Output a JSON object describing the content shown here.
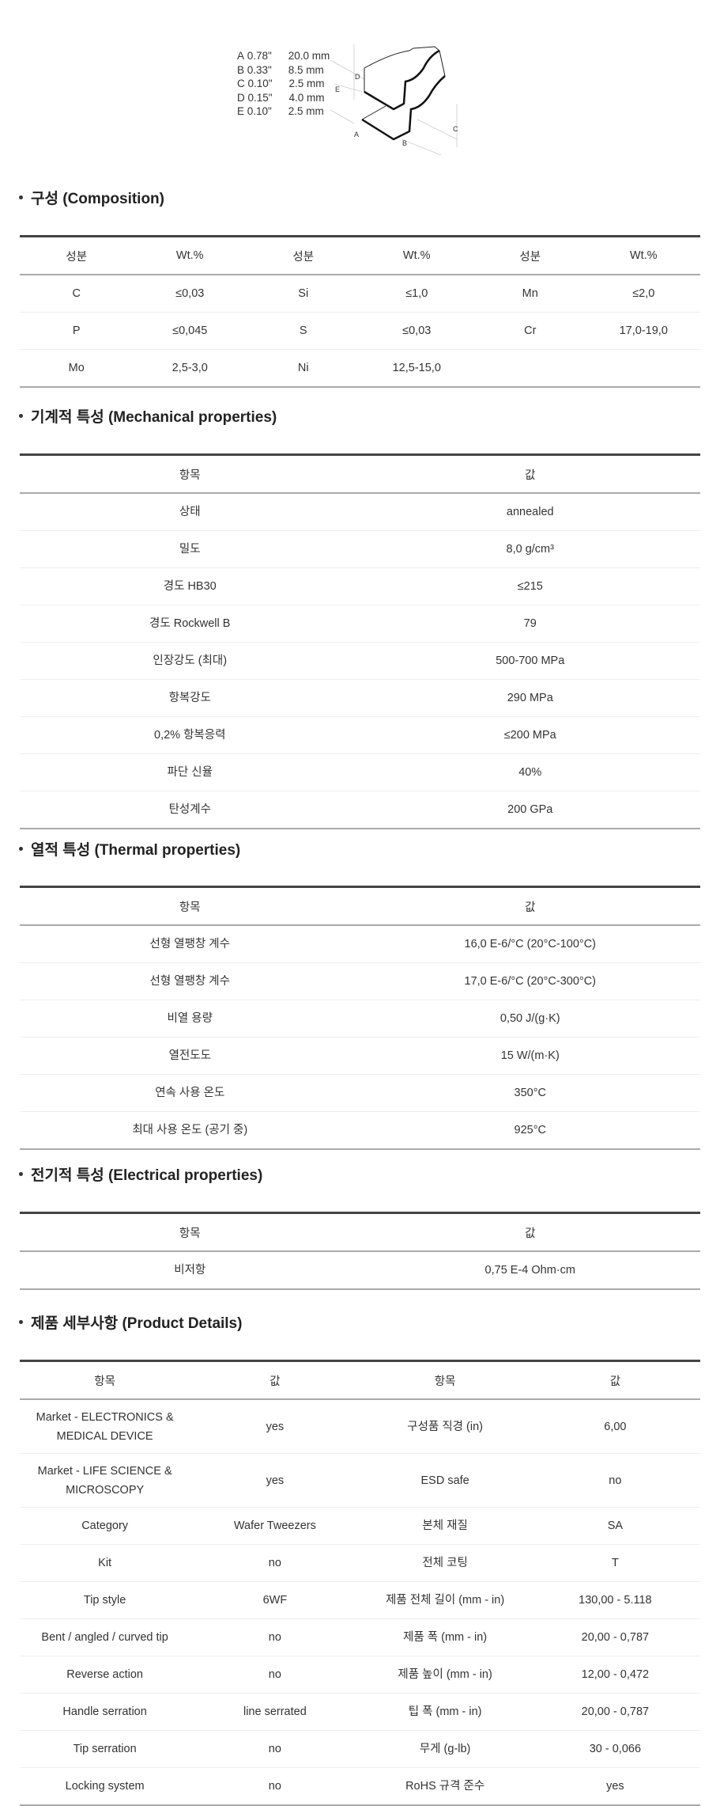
{
  "dimensions": [
    {
      "label": "A",
      "inch": "0.78\"",
      "mm": "20.0 mm"
    },
    {
      "label": "B",
      "inch": "0.33\"",
      "mm": "8.5 mm"
    },
    {
      "label": "C",
      "inch": "0.10\"",
      "mm": "2.5 mm"
    },
    {
      "label": "D",
      "inch": "0.15\"",
      "mm": "4.0 mm"
    },
    {
      "label": "E",
      "inch": "0.10\"",
      "mm": "2.5 mm"
    }
  ],
  "composition": {
    "title": "구성 (Composition)",
    "headers": [
      "성분",
      "Wt.%",
      "성분",
      "Wt.%",
      "성분",
      "Wt.%"
    ],
    "rows": [
      [
        "C",
        "≤0,03",
        "Si",
        "≤1,0",
        "Mn",
        "≤2,0"
      ],
      [
        "P",
        "≤0,045",
        "S",
        "≤0,03",
        "Cr",
        "17,0-19,0"
      ],
      [
        "Mo",
        "2,5-3,0",
        "Ni",
        "12,5-15,0",
        "",
        ""
      ]
    ]
  },
  "mechanical": {
    "title": "기계적 특성 (Mechanical properties)",
    "headers": [
      "항목",
      "값"
    ],
    "rows": [
      [
        "상태",
        "annealed"
      ],
      [
        "밀도",
        "8,0 g/cm³"
      ],
      [
        "경도 HB30",
        "≤215"
      ],
      [
        "경도 Rockwell B",
        "79"
      ],
      [
        "인장강도 (최대)",
        "500-700 MPa"
      ],
      [
        "항복강도",
        "290 MPa"
      ],
      [
        "0,2% 항복응력",
        "≤200 MPa"
      ],
      [
        "파단 신율",
        "40%"
      ],
      [
        "탄성계수",
        "200 GPa"
      ]
    ]
  },
  "thermal": {
    "title": "열적 특성 (Thermal properties)",
    "headers": [
      "항목",
      "값"
    ],
    "rows": [
      [
        "선형 열팽창 계수",
        "16,0 E-6/°C (20°C-100°C)"
      ],
      [
        "선형 열팽창 계수",
        "17,0 E-6/°C (20°C-300°C)"
      ],
      [
        "비열 용량",
        "0,50 J/(g·K)"
      ],
      [
        "열전도도",
        "15 W/(m·K)"
      ],
      [
        "연속 사용 온도",
        "350°C"
      ],
      [
        "최대 사용 온도 (공기 중)",
        "925°C"
      ]
    ]
  },
  "electrical": {
    "title": "전기적 특성 (Electrical properties)",
    "headers": [
      "항목",
      "값"
    ],
    "rows": [
      [
        "비저항",
        "0,75 E-4 Ohm·cm"
      ]
    ]
  },
  "product": {
    "title": "제품 세부사항 (Product Details)",
    "headers": [
      "항목",
      "값",
      "항목",
      "값"
    ],
    "rows": [
      [
        "Market - ELECTRONICS & MEDICAL DEVICE",
        "yes",
        "구성품 직경 (in)",
        "6,00"
      ],
      [
        "Market - LIFE SCIENCE & MICROSCOPY",
        "yes",
        "ESD safe",
        "no"
      ],
      [
        "Category",
        "Wafer Tweezers",
        "본체 재질",
        "SA"
      ],
      [
        "Kit",
        "no",
        "전체 코팅",
        "T"
      ],
      [
        "Tip style",
        "6WF",
        "제품 전체 길이 (mm - in)",
        "130,00 - 5.118"
      ],
      [
        "Bent / angled / curved tip",
        "no",
        "제품 폭 (mm - in)",
        "20,00 - 0,787"
      ],
      [
        "Reverse action",
        "no",
        "제품 높이 (mm - in)",
        "12,00 - 0,472"
      ],
      [
        "Handle serration",
        "line serrated",
        "팁 폭 (mm - in)",
        "20,00 - 0,787"
      ],
      [
        "Tip serration",
        "no",
        "무게 (g-lb)",
        "30 - 0,066"
      ],
      [
        "Locking system",
        "no",
        "RoHS 규격 준수",
        "yes"
      ]
    ]
  }
}
